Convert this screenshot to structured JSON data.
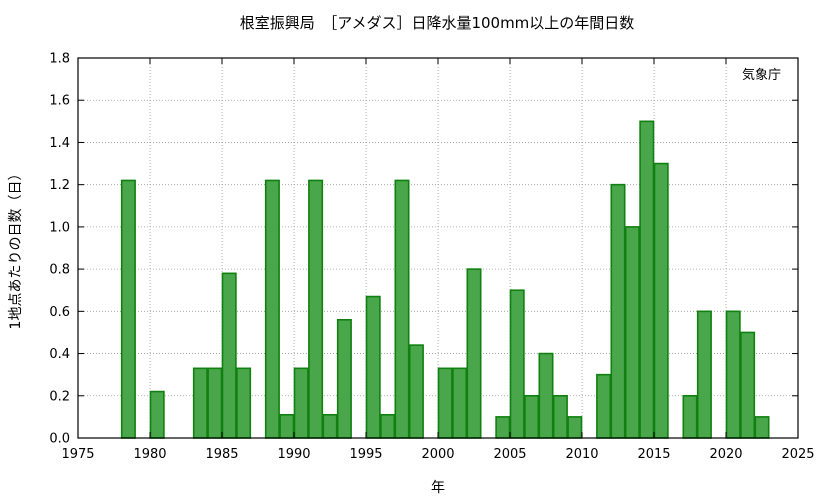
{
  "chart_data": {
    "type": "bar",
    "title": "根室振興局　［アメダス］日降水量100mm以上の年間日数",
    "xlabel": "年",
    "ylabel": "1地点あたりの日数（日）",
    "source_label": "気象庁",
    "xlim": [
      1975,
      2025
    ],
    "ylim": [
      0,
      1.8
    ],
    "x_ticks": [
      "1975",
      "1980",
      "1985",
      "1990",
      "1995",
      "2000",
      "2005",
      "2010",
      "2015",
      "2020",
      "2025"
    ],
    "y_ticks": [
      "0.0",
      "0.2",
      "0.4",
      "0.6",
      "0.8",
      "1.0",
      "1.2",
      "1.4",
      "1.6",
      "1.8"
    ],
    "grid": true,
    "bar_color": "#4aa64a",
    "bar_edge_color": "#108010",
    "x": [
      1978,
      1979,
      1980,
      1981,
      1982,
      1983,
      1984,
      1985,
      1986,
      1987,
      1988,
      1989,
      1990,
      1991,
      1992,
      1993,
      1994,
      1995,
      1996,
      1997,
      1998,
      1999,
      2000,
      2001,
      2002,
      2003,
      2004,
      2005,
      2006,
      2007,
      2008,
      2009,
      2010,
      2011,
      2012,
      2013,
      2014,
      2015,
      2016,
      2017,
      2018,
      2019,
      2020,
      2021,
      2022,
      2023
    ],
    "values": [
      1.22,
      0,
      0.22,
      0,
      0,
      0.33,
      0.33,
      0.78,
      0.33,
      0,
      1.22,
      0.11,
      0.33,
      1.22,
      0.11,
      0.56,
      0,
      0.67,
      0.11,
      1.22,
      0.44,
      0,
      0.33,
      0.33,
      0.8,
      0,
      0.1,
      0.7,
      0.2,
      0.4,
      0.2,
      0.1,
      0,
      0.3,
      1.2,
      1.0,
      1.5,
      1.3,
      0,
      0.2,
      0.6,
      0,
      0.6,
      0.5,
      0.1,
      0
    ]
  }
}
